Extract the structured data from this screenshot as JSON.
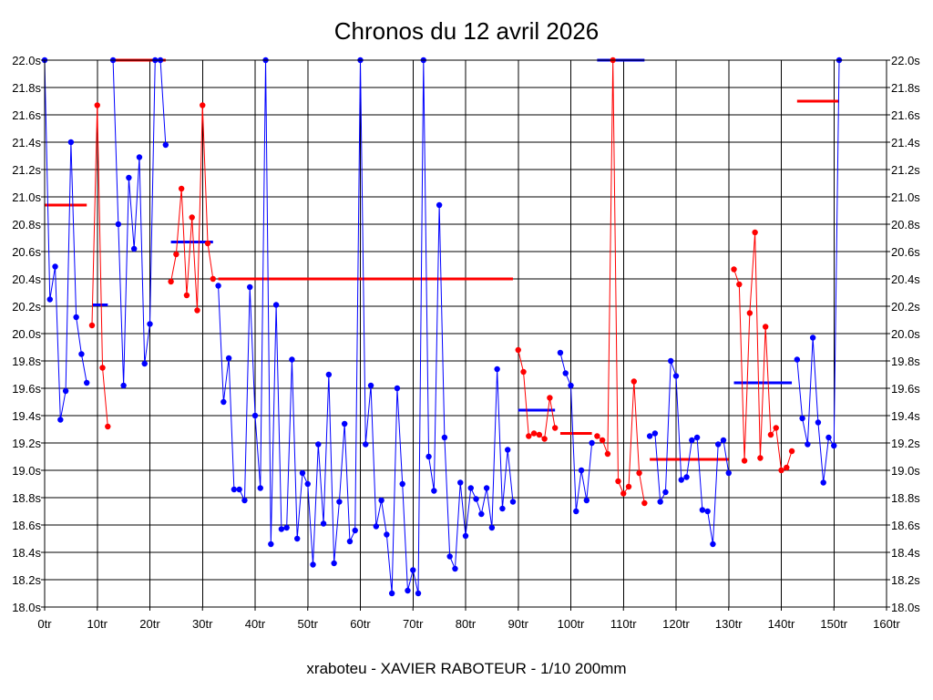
{
  "chart_data": {
    "type": "line",
    "title": "Chronos du 12 avril 2026",
    "subtitle": "xraboteu - XAVIER RABOTEUR - 1/10 200mm",
    "xlim": [
      0,
      160
    ],
    "ylim": [
      18.0,
      22.0
    ],
    "x_ticks": [
      0,
      10,
      20,
      30,
      40,
      50,
      60,
      70,
      80,
      90,
      100,
      110,
      120,
      130,
      140,
      150,
      160
    ],
    "x_tick_labels": [
      "0tr",
      "10tr",
      "20tr",
      "30tr",
      "40tr",
      "50tr",
      "60tr",
      "70tr",
      "80tr",
      "90tr",
      "100tr",
      "110tr",
      "120tr",
      "130tr",
      "140tr",
      "150tr",
      "160tr"
    ],
    "y_ticks": [
      18.0,
      18.2,
      18.4,
      18.6,
      18.8,
      19.0,
      19.2,
      19.4,
      19.6,
      19.8,
      20.0,
      20.2,
      20.4,
      20.6,
      20.8,
      21.0,
      21.2,
      21.4,
      21.6,
      21.8,
      22.0
    ],
    "y_tick_labels": [
      "18.0s",
      "18.2s",
      "18.4s",
      "18.6s",
      "18.8s",
      "19.0s",
      "19.2s",
      "19.4s",
      "19.6s",
      "19.8s",
      "20.0s",
      "20.2s",
      "20.4s",
      "20.6s",
      "20.8s",
      "21.0s",
      "21.2s",
      "21.4s",
      "21.6s",
      "21.8s",
      "22.0s"
    ],
    "grid": true,
    "colors": {
      "blue": "#0000ff",
      "red": "#ff0000"
    },
    "segments": [
      {
        "color": "blue",
        "points": [
          [
            0,
            22.0
          ],
          [
            1,
            20.25
          ],
          [
            2,
            20.49
          ],
          [
            3,
            19.37
          ],
          [
            4,
            19.58
          ],
          [
            5,
            21.4
          ],
          [
            6,
            20.12
          ],
          [
            7,
            19.85
          ],
          [
            8,
            19.64
          ]
        ]
      },
      {
        "color": "red",
        "points": [
          [
            9,
            20.06
          ],
          [
            10,
            21.67
          ],
          [
            11,
            19.75
          ],
          [
            12,
            19.32
          ]
        ]
      },
      {
        "color": "blue",
        "points": [
          [
            13,
            22.0
          ],
          [
            14,
            20.8
          ],
          [
            15,
            19.62
          ],
          [
            16,
            21.14
          ],
          [
            17,
            20.62
          ],
          [
            18,
            21.29
          ],
          [
            19,
            19.78
          ],
          [
            20,
            20.07
          ],
          [
            21,
            22.0
          ],
          [
            22,
            22.0
          ],
          [
            23,
            21.38
          ]
        ]
      },
      {
        "color": "red",
        "points": [
          [
            24,
            20.38
          ],
          [
            25,
            20.58
          ],
          [
            26,
            21.06
          ],
          [
            27,
            20.28
          ],
          [
            28,
            20.85
          ],
          [
            29,
            20.17
          ],
          [
            30,
            21.67
          ],
          [
            31,
            20.66
          ],
          [
            32,
            20.4
          ]
        ]
      },
      {
        "color": "blue",
        "points": [
          [
            33,
            20.35
          ],
          [
            34,
            19.5
          ],
          [
            35,
            19.82
          ],
          [
            36,
            18.86
          ],
          [
            37,
            18.86
          ],
          [
            38,
            18.78
          ],
          [
            39,
            20.34
          ],
          [
            40,
            19.4
          ],
          [
            41,
            18.87
          ],
          [
            42,
            22.0
          ],
          [
            43,
            18.46
          ],
          [
            44,
            20.21
          ],
          [
            45,
            18.57
          ],
          [
            46,
            18.58
          ],
          [
            47,
            19.81
          ],
          [
            48,
            18.5
          ],
          [
            49,
            18.98
          ],
          [
            50,
            18.9
          ],
          [
            51,
            18.31
          ],
          [
            52,
            19.19
          ],
          [
            53,
            18.61
          ],
          [
            54,
            19.7
          ],
          [
            55,
            18.32
          ],
          [
            56,
            18.77
          ],
          [
            57,
            19.34
          ],
          [
            58,
            18.48
          ],
          [
            59,
            18.56
          ],
          [
            60,
            22.0
          ],
          [
            61,
            19.19
          ],
          [
            62,
            19.62
          ],
          [
            63,
            18.59
          ],
          [
            64,
            18.78
          ],
          [
            65,
            18.53
          ],
          [
            66,
            18.1
          ],
          [
            67,
            19.6
          ],
          [
            68,
            18.9
          ],
          [
            69,
            18.12
          ],
          [
            70,
            18.27
          ],
          [
            71,
            18.1
          ],
          [
            72,
            22.0
          ],
          [
            73,
            19.1
          ],
          [
            74,
            18.85
          ],
          [
            75,
            20.94
          ],
          [
            76,
            19.24
          ],
          [
            77,
            18.37
          ],
          [
            78,
            18.28
          ],
          [
            79,
            18.91
          ],
          [
            80,
            18.52
          ],
          [
            81,
            18.87
          ],
          [
            82,
            18.79
          ],
          [
            83,
            18.68
          ],
          [
            84,
            18.87
          ],
          [
            85,
            18.58
          ],
          [
            86,
            19.74
          ],
          [
            87,
            18.72
          ],
          [
            88,
            19.15
          ],
          [
            89,
            18.77
          ]
        ]
      },
      {
        "color": "red",
        "points": [
          [
            90,
            19.88
          ],
          [
            91,
            19.72
          ],
          [
            92,
            19.25
          ],
          [
            93,
            19.27
          ],
          [
            94,
            19.26
          ],
          [
            95,
            19.23
          ],
          [
            96,
            19.53
          ],
          [
            97,
            19.31
          ]
        ]
      },
      {
        "color": "blue",
        "points": [
          [
            98,
            19.86
          ],
          [
            99,
            19.71
          ],
          [
            100,
            19.62
          ],
          [
            101,
            18.7
          ],
          [
            102,
            19.0
          ],
          [
            103,
            18.78
          ],
          [
            104,
            19.2
          ]
        ]
      },
      {
        "color": "red",
        "points": [
          [
            105,
            19.25
          ],
          [
            106,
            19.22
          ],
          [
            107,
            19.12
          ],
          [
            108,
            22.0
          ],
          [
            109,
            18.92
          ],
          [
            110,
            18.83
          ],
          [
            111,
            18.88
          ],
          [
            112,
            19.65
          ],
          [
            113,
            18.98
          ],
          [
            114,
            18.76
          ]
        ]
      },
      {
        "color": "blue",
        "points": [
          [
            115,
            19.25
          ],
          [
            116,
            19.27
          ],
          [
            117,
            18.77
          ],
          [
            118,
            18.84
          ],
          [
            119,
            19.8
          ],
          [
            120,
            19.69
          ],
          [
            121,
            18.93
          ],
          [
            122,
            18.95
          ],
          [
            123,
            19.22
          ],
          [
            124,
            19.24
          ],
          [
            125,
            18.71
          ],
          [
            126,
            18.7
          ],
          [
            127,
            18.46
          ],
          [
            128,
            19.19
          ],
          [
            129,
            19.22
          ],
          [
            130,
            18.98
          ]
        ]
      },
      {
        "color": "red",
        "points": [
          [
            131,
            20.47
          ],
          [
            132,
            20.36
          ],
          [
            133,
            19.07
          ],
          [
            134,
            20.15
          ],
          [
            135,
            20.74
          ],
          [
            136,
            19.09
          ],
          [
            137,
            20.05
          ],
          [
            138,
            19.26
          ],
          [
            139,
            19.31
          ],
          [
            140,
            19.0
          ],
          [
            141,
            19.02
          ],
          [
            142,
            19.14
          ]
        ]
      },
      {
        "color": "blue",
        "points": [
          [
            143,
            19.81
          ],
          [
            144,
            19.38
          ],
          [
            145,
            19.19
          ],
          [
            146,
            19.97
          ],
          [
            147,
            19.35
          ],
          [
            148,
            18.91
          ],
          [
            149,
            19.24
          ],
          [
            150,
            19.18
          ],
          [
            151,
            22.0
          ]
        ]
      }
    ],
    "averages": [
      {
        "color": "red",
        "x_start": 0,
        "x_end": 8,
        "y": 20.94
      },
      {
        "color": "blue",
        "x_start": 9,
        "x_end": 12,
        "y": 20.21
      },
      {
        "color": "red",
        "x_start": 13,
        "x_end": 23,
        "y": 22.0
      },
      {
        "color": "blue",
        "x_start": 24,
        "x_end": 32,
        "y": 20.67
      },
      {
        "color": "red",
        "x_start": 33,
        "x_end": 89,
        "y": 20.4
      },
      {
        "color": "blue",
        "x_start": 90,
        "x_end": 97,
        "y": 19.44
      },
      {
        "color": "red",
        "x_start": 98,
        "x_end": 104,
        "y": 19.27
      },
      {
        "color": "blue",
        "x_start": 105,
        "x_end": 114,
        "y": 22.0
      },
      {
        "color": "red",
        "x_start": 115,
        "x_end": 130,
        "y": 19.08
      },
      {
        "color": "blue",
        "x_start": 131,
        "x_end": 142,
        "y": 19.64
      },
      {
        "color": "red",
        "x_start": 143,
        "x_end": 151,
        "y": 21.7
      }
    ]
  }
}
